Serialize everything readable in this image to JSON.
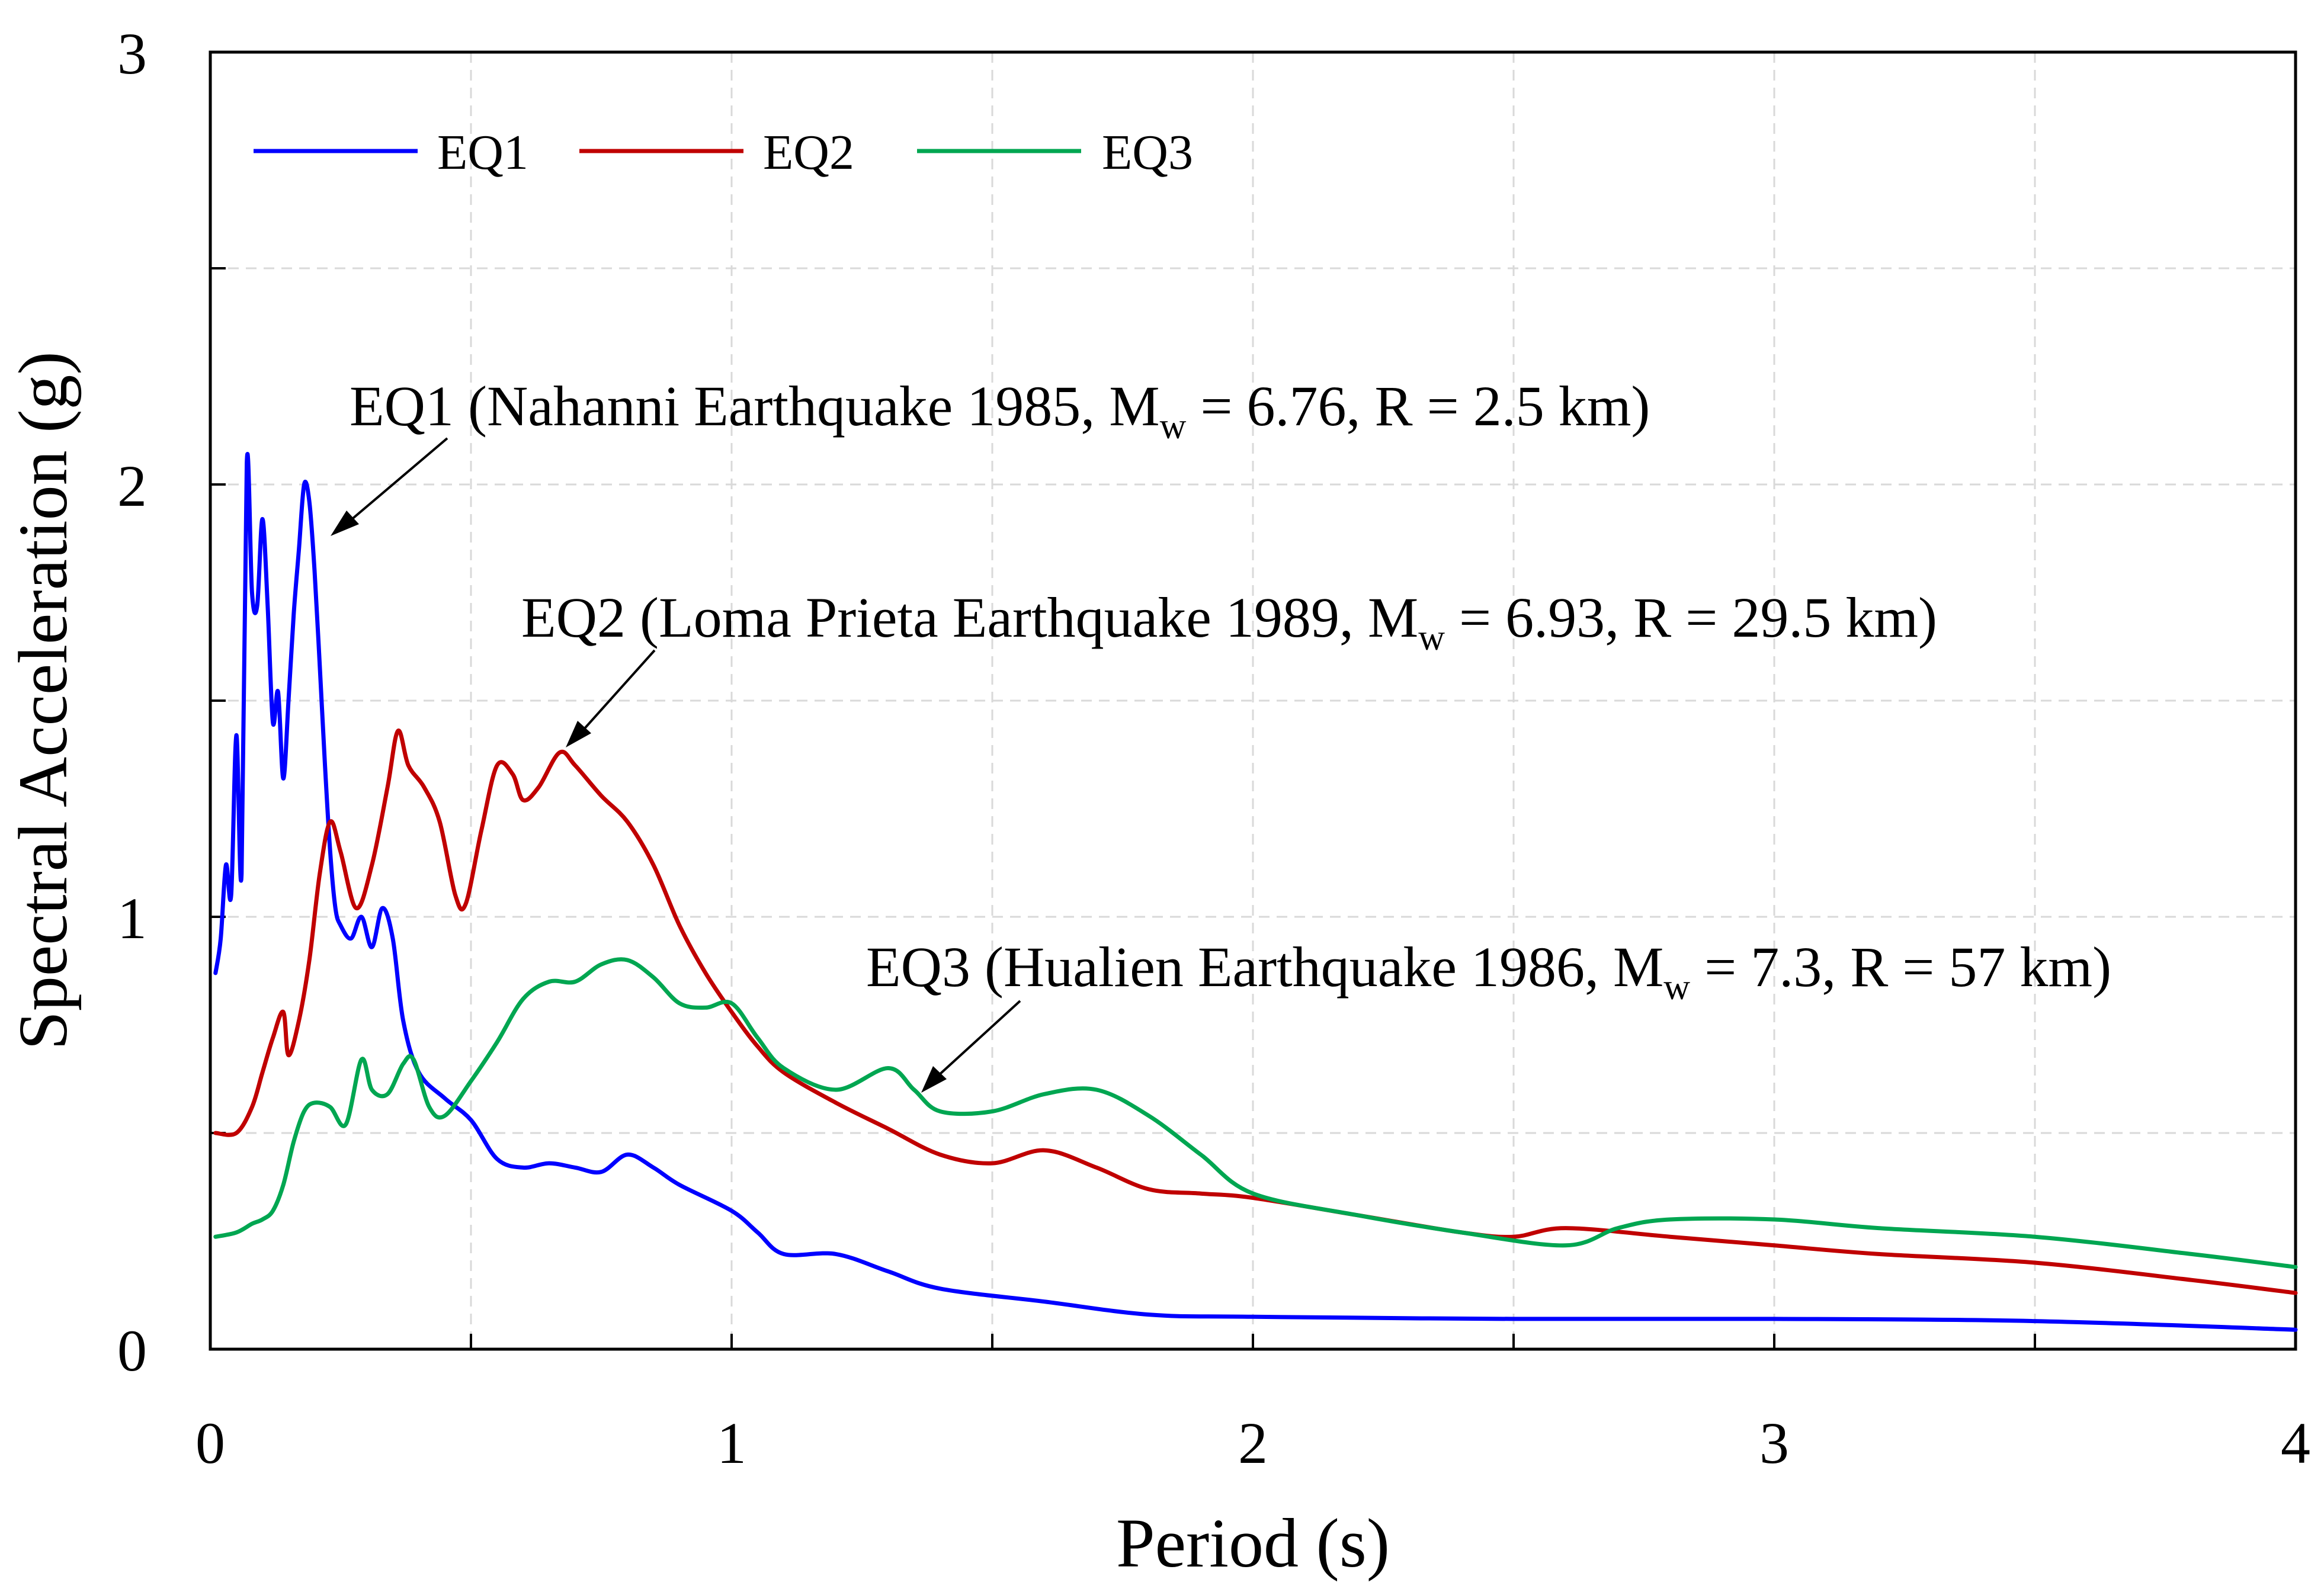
{
  "chart_data": {
    "type": "line",
    "title": "",
    "xlabel": "Period (s)",
    "ylabel": "Spectral Acceleration (g)",
    "xlim": [
      0,
      4
    ],
    "ylim": [
      0,
      3
    ],
    "xticks": [
      "0",
      "1",
      "2",
      "3",
      "4"
    ],
    "yticks": [
      "0",
      "1",
      "2",
      "3"
    ],
    "grid": true,
    "legend_position": "top-left",
    "series": [
      {
        "name": "EQ1",
        "color": "#0000ff",
        "points": [
          [
            0.01,
            0.87
          ],
          [
            0.02,
            0.95
          ],
          [
            0.03,
            1.12
          ],
          [
            0.04,
            1.05
          ],
          [
            0.05,
            1.42
          ],
          [
            0.06,
            1.1
          ],
          [
            0.07,
            2.05
          ],
          [
            0.08,
            1.75
          ],
          [
            0.09,
            1.72
          ],
          [
            0.1,
            1.92
          ],
          [
            0.11,
            1.72
          ],
          [
            0.12,
            1.45
          ],
          [
            0.13,
            1.52
          ],
          [
            0.14,
            1.32
          ],
          [
            0.15,
            1.5
          ],
          [
            0.16,
            1.7
          ],
          [
            0.17,
            1.85
          ],
          [
            0.18,
            2.0
          ],
          [
            0.19,
            1.96
          ],
          [
            0.2,
            1.8
          ],
          [
            0.21,
            1.58
          ],
          [
            0.22,
            1.35
          ],
          [
            0.23,
            1.15
          ],
          [
            0.24,
            1.02
          ],
          [
            0.25,
            0.98
          ],
          [
            0.27,
            0.95
          ],
          [
            0.29,
            1.0
          ],
          [
            0.31,
            0.93
          ],
          [
            0.33,
            1.02
          ],
          [
            0.35,
            0.95
          ],
          [
            0.37,
            0.76
          ],
          [
            0.4,
            0.64
          ],
          [
            0.45,
            0.58
          ],
          [
            0.5,
            0.53
          ],
          [
            0.55,
            0.44
          ],
          [
            0.6,
            0.42
          ],
          [
            0.65,
            0.43
          ],
          [
            0.7,
            0.42
          ],
          [
            0.75,
            0.41
          ],
          [
            0.8,
            0.45
          ],
          [
            0.85,
            0.42
          ],
          [
            0.9,
            0.38
          ],
          [
            1.0,
            0.32
          ],
          [
            1.05,
            0.27
          ],
          [
            1.1,
            0.22
          ],
          [
            1.2,
            0.22
          ],
          [
            1.3,
            0.18
          ],
          [
            1.4,
            0.14
          ],
          [
            1.6,
            0.11
          ],
          [
            1.8,
            0.08
          ],
          [
            2.0,
            0.075
          ],
          [
            2.5,
            0.07
          ],
          [
            3.0,
            0.07
          ],
          [
            3.5,
            0.065
          ],
          [
            4.0,
            0.045
          ]
        ]
      },
      {
        "name": "EQ2",
        "color": "#c00000",
        "points": [
          [
            0.01,
            0.5
          ],
          [
            0.05,
            0.5
          ],
          [
            0.08,
            0.56
          ],
          [
            0.1,
            0.64
          ],
          [
            0.12,
            0.72
          ],
          [
            0.14,
            0.78
          ],
          [
            0.15,
            0.68
          ],
          [
            0.17,
            0.76
          ],
          [
            0.19,
            0.9
          ],
          [
            0.21,
            1.1
          ],
          [
            0.23,
            1.22
          ],
          [
            0.25,
            1.15
          ],
          [
            0.28,
            1.02
          ],
          [
            0.31,
            1.12
          ],
          [
            0.34,
            1.3
          ],
          [
            0.36,
            1.43
          ],
          [
            0.38,
            1.35
          ],
          [
            0.41,
            1.3
          ],
          [
            0.44,
            1.22
          ],
          [
            0.47,
            1.05
          ],
          [
            0.49,
            1.03
          ],
          [
            0.52,
            1.2
          ],
          [
            0.55,
            1.35
          ],
          [
            0.58,
            1.33
          ],
          [
            0.6,
            1.27
          ],
          [
            0.63,
            1.3
          ],
          [
            0.67,
            1.38
          ],
          [
            0.7,
            1.35
          ],
          [
            0.75,
            1.28
          ],
          [
            0.8,
            1.22
          ],
          [
            0.85,
            1.12
          ],
          [
            0.9,
            0.98
          ],
          [
            0.95,
            0.87
          ],
          [
            1.0,
            0.78
          ],
          [
            1.05,
            0.7
          ],
          [
            1.1,
            0.64
          ],
          [
            1.2,
            0.57
          ],
          [
            1.3,
            0.51
          ],
          [
            1.4,
            0.45
          ],
          [
            1.5,
            0.43
          ],
          [
            1.6,
            0.46
          ],
          [
            1.7,
            0.42
          ],
          [
            1.8,
            0.37
          ],
          [
            1.9,
            0.36
          ],
          [
            2.0,
            0.35
          ],
          [
            2.2,
            0.31
          ],
          [
            2.4,
            0.27
          ],
          [
            2.5,
            0.26
          ],
          [
            2.6,
            0.28
          ],
          [
            2.8,
            0.26
          ],
          [
            3.0,
            0.24
          ],
          [
            3.2,
            0.22
          ],
          [
            3.5,
            0.2
          ],
          [
            3.8,
            0.16
          ],
          [
            4.0,
            0.13
          ]
        ]
      },
      {
        "name": "EQ3",
        "color": "#00a651",
        "points": [
          [
            0.01,
            0.26
          ],
          [
            0.05,
            0.27
          ],
          [
            0.08,
            0.29
          ],
          [
            0.1,
            0.3
          ],
          [
            0.12,
            0.32
          ],
          [
            0.14,
            0.38
          ],
          [
            0.16,
            0.48
          ],
          [
            0.18,
            0.55
          ],
          [
            0.2,
            0.57
          ],
          [
            0.23,
            0.56
          ],
          [
            0.26,
            0.52
          ],
          [
            0.29,
            0.67
          ],
          [
            0.31,
            0.6
          ],
          [
            0.34,
            0.59
          ],
          [
            0.37,
            0.66
          ],
          [
            0.39,
            0.67
          ],
          [
            0.42,
            0.56
          ],
          [
            0.45,
            0.54
          ],
          [
            0.5,
            0.62
          ],
          [
            0.55,
            0.71
          ],
          [
            0.6,
            0.81
          ],
          [
            0.65,
            0.85
          ],
          [
            0.7,
            0.85
          ],
          [
            0.75,
            0.89
          ],
          [
            0.8,
            0.9
          ],
          [
            0.85,
            0.86
          ],
          [
            0.9,
            0.8
          ],
          [
            0.95,
            0.79
          ],
          [
            1.0,
            0.8
          ],
          [
            1.05,
            0.72
          ],
          [
            1.1,
            0.65
          ],
          [
            1.2,
            0.6
          ],
          [
            1.3,
            0.65
          ],
          [
            1.35,
            0.6
          ],
          [
            1.4,
            0.55
          ],
          [
            1.5,
            0.55
          ],
          [
            1.6,
            0.59
          ],
          [
            1.7,
            0.6
          ],
          [
            1.8,
            0.54
          ],
          [
            1.9,
            0.45
          ],
          [
            2.0,
            0.36
          ],
          [
            2.2,
            0.31
          ],
          [
            2.4,
            0.27
          ],
          [
            2.6,
            0.24
          ],
          [
            2.7,
            0.28
          ],
          [
            2.8,
            0.3
          ],
          [
            3.0,
            0.3
          ],
          [
            3.2,
            0.28
          ],
          [
            3.5,
            0.26
          ],
          [
            3.8,
            0.22
          ],
          [
            4.0,
            0.19
          ]
        ]
      }
    ],
    "annotations": [
      {
        "series": "EQ1",
        "prefix": "EQ1 (Nahanni Earthquake 1985, M",
        "sub": "w",
        "suffix": " = 6.76, R = 2.5 km)"
      },
      {
        "series": "EQ2",
        "prefix": "EQ2 (Loma Prieta Earthquake 1989, M",
        "sub": "w",
        "suffix": " = 6.93, R = 29.5 km)"
      },
      {
        "series": "EQ3",
        "prefix": "EQ3 (Hualien Earthquake 1986, M",
        "sub": "w",
        "suffix": " = 7.3, R = 57 km)"
      }
    ]
  }
}
